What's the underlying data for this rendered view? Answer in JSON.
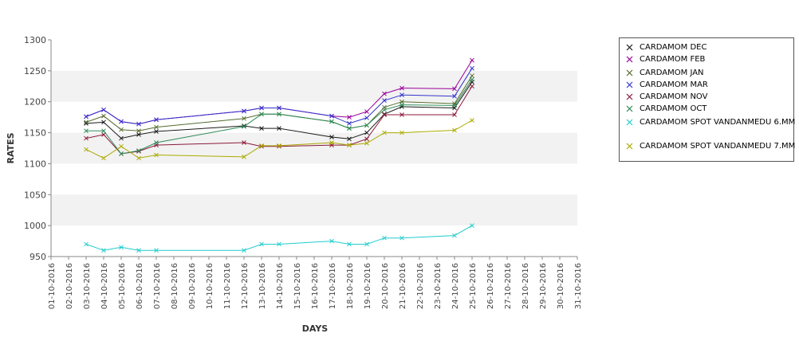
{
  "chart_data": {
    "type": "line",
    "xlabel": "DAYS",
    "ylabel": "RATES",
    "ylim": [
      950,
      1300
    ],
    "yticks": [
      950,
      1000,
      1050,
      1100,
      1150,
      1200,
      1250,
      1300
    ],
    "grid": "horizontal alternating bands",
    "legend": "right",
    "marker": "x",
    "x_categories": [
      "01-10-2016",
      "02-10-2016",
      "03-10-2016",
      "04-10-2016",
      "05-10-2016",
      "06-10-2016",
      "07-10-2016",
      "08-10-2016",
      "09-10-2016",
      "10-10-2016",
      "11-10-2016",
      "12-10-2016",
      "13-10-2016",
      "14-10-2016",
      "15-10-2016",
      "16-10-2016",
      "17-10-2016",
      "18-10-2016",
      "19-10-2016",
      "20-10-2016",
      "21-10-2016",
      "22-10-2016",
      "23-10-2016",
      "24-10-2016",
      "25-10-2016",
      "26-10-2016",
      "27-10-2016",
      "28-10-2016",
      "29-10-2016",
      "30-10-2016",
      "31-10-2016"
    ],
    "series": [
      {
        "name": "CARDAMOM DEC",
        "color": "#1a1a1a",
        "x": [
          "03-10-2016",
          "04-10-2016",
          "05-10-2016",
          "06-10-2016",
          "07-10-2016",
          "12-10-2016",
          "13-10-2016",
          "14-10-2016",
          "17-10-2016",
          "18-10-2016",
          "19-10-2016",
          "20-10-2016",
          "21-10-2016",
          "24-10-2016",
          "25-10-2016"
        ],
        "values": [
          1165,
          1167,
          1141,
          1147,
          1152,
          1161,
          1157,
          1157,
          1143,
          1140,
          1150,
          1180,
          1192,
          1190,
          1232
        ]
      },
      {
        "name": "CARDAMOM FEB",
        "color": "#990099",
        "x": [
          "03-10-2016",
          "04-10-2016",
          "05-10-2016",
          "06-10-2016",
          "07-10-2016",
          "12-10-2016",
          "13-10-2016",
          "14-10-2016",
          "17-10-2016",
          "18-10-2016",
          "19-10-2016",
          "20-10-2016",
          "21-10-2016",
          "24-10-2016",
          "25-10-2016"
        ],
        "values": [
          1176,
          1187,
          1168,
          1164,
          1171,
          1185,
          1190,
          1190,
          1177,
          1175,
          1184,
          1213,
          1222,
          1221,
          1267
        ]
      },
      {
        "name": "CARDAMOM JAN",
        "color": "#556b2f",
        "x": [
          "03-10-2016",
          "04-10-2016",
          "05-10-2016",
          "06-10-2016",
          "07-10-2016",
          "12-10-2016",
          "13-10-2016",
          "14-10-2016",
          "17-10-2016",
          "18-10-2016",
          "19-10-2016",
          "20-10-2016",
          "21-10-2016",
          "24-10-2016",
          "25-10-2016"
        ],
        "values": [
          1167,
          1177,
          1155,
          1153,
          1159,
          1173,
          1180,
          1180,
          1168,
          1157,
          1162,
          1191,
          1200,
          1197,
          1242
        ]
      },
      {
        "name": "CARDAMOM MAR",
        "color": "#3333cc",
        "x": [
          "03-10-2016",
          "04-10-2016",
          "05-10-2016",
          "06-10-2016",
          "07-10-2016",
          "12-10-2016",
          "13-10-2016",
          "14-10-2016",
          "17-10-2016",
          "18-10-2016",
          "19-10-2016",
          "20-10-2016",
          "21-10-2016",
          "24-10-2016",
          "25-10-2016"
        ],
        "values": [
          1176,
          1187,
          1168,
          1164,
          1171,
          1185,
          1190,
          1190,
          1177,
          1165,
          1174,
          1202,
          1211,
          1209,
          1254
        ]
      },
      {
        "name": "CARDAMOM NOV",
        "color": "#8b1a3a",
        "x": [
          "03-10-2016",
          "04-10-2016",
          "05-10-2016",
          "06-10-2016",
          "07-10-2016",
          "12-10-2016",
          "13-10-2016",
          "14-10-2016",
          "17-10-2016",
          "18-10-2016",
          "19-10-2016",
          "20-10-2016",
          "21-10-2016",
          "24-10-2016",
          "25-10-2016"
        ],
        "values": [
          1141,
          1147,
          1116,
          1120,
          1130,
          1134,
          1128,
          1128,
          1130,
          1130,
          1140,
          1179,
          1179,
          1179,
          1225
        ]
      },
      {
        "name": "CARDAMOM OCT",
        "color": "#2e8b57",
        "x": [
          "03-10-2016",
          "04-10-2016",
          "05-10-2016",
          "06-10-2016",
          "07-10-2016",
          "12-10-2016",
          "13-10-2016",
          "14-10-2016",
          "17-10-2016",
          "18-10-2016",
          "19-10-2016",
          "20-10-2016",
          "21-10-2016",
          "24-10-2016",
          "25-10-2016"
        ],
        "values": [
          1153,
          1153,
          1116,
          1121,
          1134,
          1160,
          1180,
          1180,
          1168,
          1157,
          1162,
          1187,
          1195,
          1194,
          1236
        ]
      },
      {
        "name": "CARDAMOM SPOT VANDANMEDU 6.MM",
        "color": "#22cccc",
        "x": [
          "03-10-2016",
          "04-10-2016",
          "05-10-2016",
          "06-10-2016",
          "07-10-2016",
          "12-10-2016",
          "13-10-2016",
          "14-10-2016",
          "17-10-2016",
          "18-10-2016",
          "19-10-2016",
          "20-10-2016",
          "21-10-2016",
          "24-10-2016",
          "25-10-2016"
        ],
        "values": [
          970,
          960,
          965,
          960,
          960,
          960,
          970,
          970,
          975,
          970,
          970,
          980,
          980,
          984,
          1000
        ]
      },
      {
        "name": "CARDAMOM SPOT VANDANMEDU 7.MM",
        "color": "#aaaa00",
        "x": [
          "03-10-2016",
          "04-10-2016",
          "05-10-2016",
          "06-10-2016",
          "07-10-2016",
          "12-10-2016",
          "13-10-2016",
          "14-10-2016",
          "17-10-2016",
          "18-10-2016",
          "19-10-2016",
          "20-10-2016",
          "21-10-2016",
          "24-10-2016",
          "25-10-2016"
        ],
        "values": [
          1123,
          1109,
          1128,
          1109,
          1114,
          1111,
          1129,
          1129,
          1134,
          1130,
          1133,
          1150,
          1150,
          1154,
          1170
        ]
      }
    ]
  }
}
